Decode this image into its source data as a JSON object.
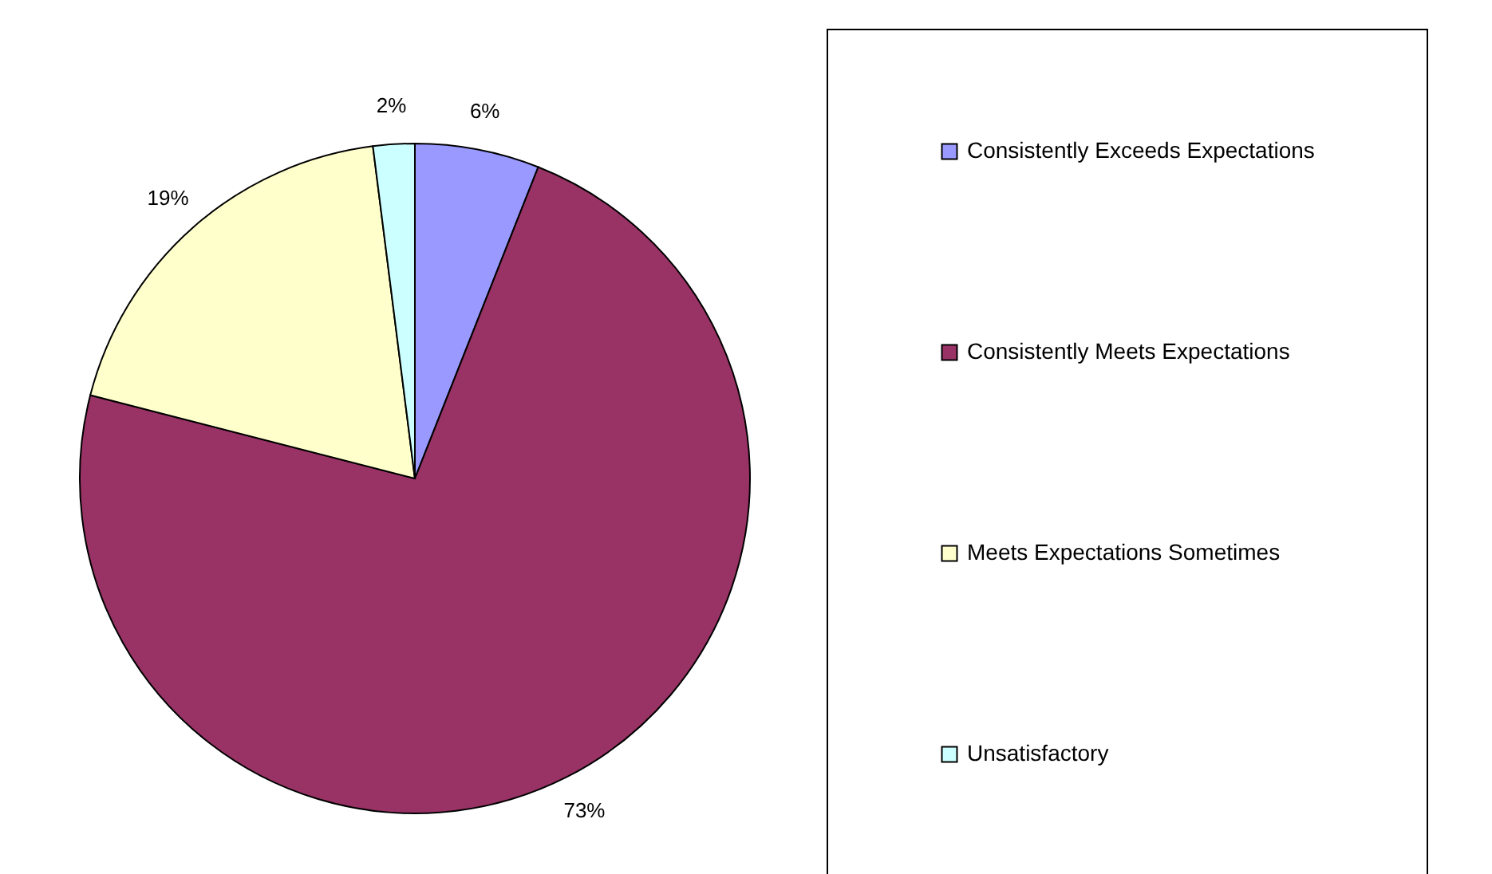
{
  "chart_data": {
    "type": "pie",
    "categories": [
      "Consistently Exceeds Expectations",
      "Consistently Meets Expectations",
      "Meets Expectations Sometimes",
      "Unsatisfactory"
    ],
    "values": [
      6,
      73,
      19,
      2
    ],
    "colors": [
      "#9999ff",
      "#993366",
      "#ffffcc",
      "#ccffff"
    ],
    "value_labels": [
      "6%",
      "73%",
      "19%",
      "2%"
    ],
    "legend": "right"
  }
}
